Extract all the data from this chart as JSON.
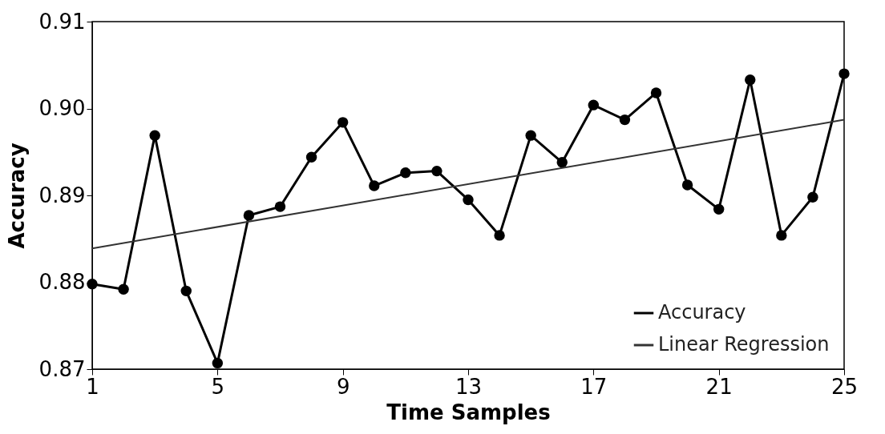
{
  "chart_data": {
    "type": "line",
    "xlabel": "Time Samples",
    "ylabel": "Accuracy",
    "x": [
      1,
      2,
      3,
      4,
      5,
      6,
      7,
      8,
      9,
      10,
      11,
      12,
      13,
      14,
      15,
      16,
      17,
      18,
      19,
      20,
      21,
      22,
      23,
      24,
      25
    ],
    "series": [
      {
        "name": "Accuracy",
        "color": "#000000",
        "marker": "circle",
        "line_style": "solid",
        "values": [
          0.8798,
          0.8792,
          0.8969,
          0.879,
          0.8707,
          0.8877,
          0.8887,
          0.8944,
          0.8984,
          0.8911,
          0.8926,
          0.8928,
          0.8895,
          0.8854,
          0.8969,
          0.8938,
          0.9004,
          0.8987,
          0.9018,
          0.8912,
          0.8884,
          0.9033,
          0.8854,
          0.8898,
          0.904
        ]
      },
      {
        "name": "Linear Regression",
        "color": "#333333",
        "marker": "none",
        "line_style": "solid",
        "x": [
          1,
          25
        ],
        "values": [
          0.8839,
          0.8987
        ]
      }
    ],
    "xlim": [
      1,
      25
    ],
    "xticks": [
      1,
      5,
      9,
      13,
      17,
      21,
      25
    ],
    "ylim": [
      0.87,
      0.91
    ],
    "yticks": [
      0.87,
      0.88,
      0.89,
      {
        "value": 0.9,
        "label": "0.90"
      },
      0.91
    ],
    "legend": "bottom right",
    "grid": false
  }
}
